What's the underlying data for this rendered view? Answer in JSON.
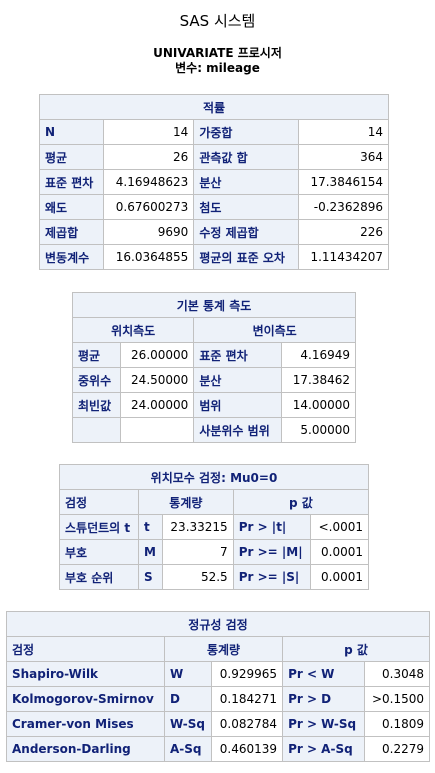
{
  "header": {
    "system_title": "SAS 시스템",
    "procedure_title": "UNIVARIATE 프로시저",
    "variable_title": "변수: mileage"
  },
  "moments": {
    "caption": "적률",
    "rows": [
      [
        "N",
        "14",
        "가중합",
        "14"
      ],
      [
        "평균",
        "26",
        "관측값 합",
        "364"
      ],
      [
        "표준 편차",
        "4.16948623",
        "분산",
        "17.3846154"
      ],
      [
        "왜도",
        "0.67600273",
        "첨도",
        "-0.2362896"
      ],
      [
        "제곱합",
        "9690",
        "수정 제곱합",
        "226"
      ],
      [
        "변동계수",
        "16.0364855",
        "평균의 표준 오차",
        "1.11434207"
      ]
    ]
  },
  "basic_stats": {
    "caption": "기본 통계 측도",
    "location_header": "위치측도",
    "variability_header": "변이측도",
    "rows": [
      [
        "평균",
        "26.00000",
        "표준 편차",
        "4.16949"
      ],
      [
        "중위수",
        "24.50000",
        "분산",
        "17.38462"
      ],
      [
        "최빈값",
        "24.00000",
        "범위",
        "14.00000"
      ],
      [
        "",
        "",
        "사분위수 범위",
        "5.00000"
      ]
    ]
  },
  "location_tests": {
    "caption": "위치모수 검정: Mu0=0",
    "headers": [
      "검정",
      "통계량",
      "p 값"
    ],
    "rows": [
      [
        "스튜던트의 t",
        "t",
        "23.33215",
        "Pr > |t|",
        "<.0001"
      ],
      [
        "부호",
        "M",
        "7",
        "Pr >= |M|",
        "0.0001"
      ],
      [
        "부호 순위",
        "S",
        "52.5",
        "Pr >= |S|",
        "0.0001"
      ]
    ]
  },
  "normality_tests": {
    "caption": "정규성 검정",
    "headers": [
      "검정",
      "통계량",
      "p 값"
    ],
    "rows": [
      [
        "Shapiro-Wilk",
        "W",
        "0.929965",
        "Pr < W",
        "0.3048"
      ],
      [
        "Kolmogorov-Smirnov",
        "D",
        "0.184271",
        "Pr > D",
        ">0.1500"
      ],
      [
        "Cramer-von Mises",
        "W-Sq",
        "0.082784",
        "Pr > W-Sq",
        "0.1809"
      ],
      [
        "Anderson-Darling",
        "A-Sq",
        "0.460139",
        "Pr > A-Sq",
        "0.2279"
      ]
    ]
  }
}
